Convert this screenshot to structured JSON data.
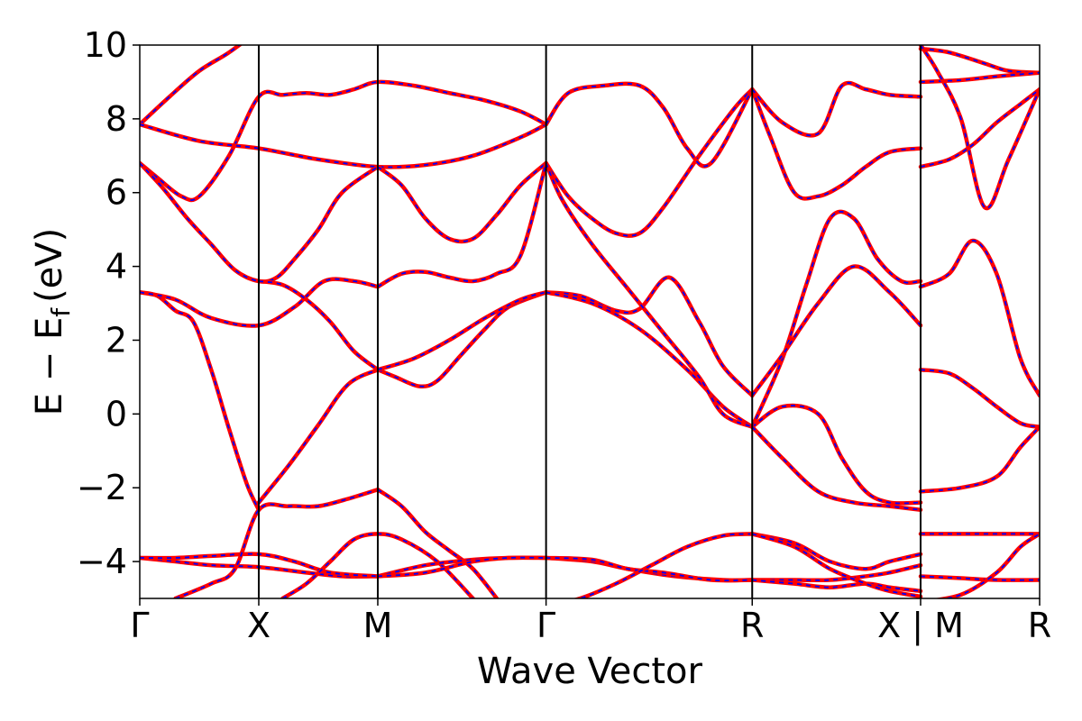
{
  "chart_data": {
    "type": "line",
    "title": "",
    "xlabel": "Wave Vector",
    "ylabel_main": "E − E",
    "ylabel_sub": "f",
    "ylabel_unit": "(eV)",
    "ylim": [
      -5,
      10
    ],
    "yticks": [
      -4,
      -2,
      0,
      2,
      4,
      6,
      8,
      10
    ],
    "ytick_labels": [
      "−4",
      "−2",
      "0",
      "2",
      "4",
      "6",
      "8",
      "10"
    ],
    "grid": false,
    "colors": {
      "band_outer": "#ff0000",
      "band_inner": "#0000ff",
      "axis": "#000000"
    },
    "path_ticks": [
      {
        "label": "Γ",
        "x": 0
      },
      {
        "label": "X",
        "x": 1
      },
      {
        "label": "M",
        "x": 2
      },
      {
        "label": "Γ",
        "x": 3.414
      },
      {
        "label": "R",
        "x": 5.146
      },
      {
        "label": "X | M",
        "x": 6.561
      },
      {
        "label": "R",
        "x": 7.561
      }
    ],
    "series": [
      {
        "x": [
          0,
          0.25,
          0.5,
          0.75,
          1.0
        ],
        "y": [
          7.85,
          8.6,
          9.3,
          9.8,
          10.4
        ]
      },
      {
        "x": [
          0,
          0.15,
          0.35,
          0.5,
          0.75,
          1.0,
          1.2,
          1.4,
          1.6,
          1.8,
          2.0,
          2.3,
          2.6,
          2.9,
          3.2,
          3.414
        ],
        "y": [
          6.8,
          6.4,
          5.9,
          5.9,
          7.0,
          8.6,
          8.65,
          8.7,
          8.65,
          8.8,
          9.0,
          8.9,
          8.7,
          8.5,
          8.2,
          7.85
        ]
      },
      {
        "x": [
          0,
          0.5,
          1.0,
          1.5,
          2.0,
          2.4,
          2.8,
          3.2,
          3.414
        ],
        "y": [
          7.85,
          7.4,
          7.2,
          6.9,
          6.7,
          6.75,
          7.0,
          7.5,
          7.85
        ]
      },
      {
        "x": [
          0,
          0.2,
          0.4,
          0.6,
          0.8,
          1.0,
          1.15,
          1.3,
          1.5,
          1.7,
          2.0
        ],
        "y": [
          6.8,
          6.1,
          5.3,
          4.6,
          3.9,
          3.6,
          3.7,
          4.2,
          5.0,
          6.0,
          6.7
        ]
      },
      {
        "x": [
          2.0,
          2.2,
          2.4,
          2.6,
          2.8,
          3.0,
          3.2,
          3.414
        ],
        "y": [
          6.7,
          6.2,
          5.3,
          4.75,
          4.75,
          5.4,
          6.2,
          6.8
        ]
      },
      {
        "x": [
          0,
          0.15,
          0.3,
          0.45,
          0.6,
          0.75,
          0.9,
          1.0
        ],
        "y": [
          3.3,
          3.2,
          2.8,
          2.5,
          1.2,
          -0.4,
          -1.9,
          -2.6
        ]
      },
      {
        "x": [
          0,
          0.3,
          0.6,
          1.0,
          1.3,
          1.55,
          1.8,
          2.0
        ],
        "y": [
          3.3,
          3.1,
          2.6,
          2.4,
          2.9,
          3.6,
          3.6,
          3.45
        ]
      },
      {
        "x": [
          1.0,
          1.2,
          1.4,
          1.6,
          1.8,
          2.0
        ],
        "y": [
          3.6,
          3.5,
          3.1,
          2.5,
          1.7,
          1.2
        ]
      },
      {
        "x": [
          2.0,
          2.2,
          2.4,
          2.6,
          2.8,
          3.0,
          3.2,
          3.414
        ],
        "y": [
          3.45,
          3.8,
          3.85,
          3.7,
          3.6,
          3.8,
          4.3,
          6.8
        ]
      },
      {
        "x": [
          1.0,
          1.25,
          1.5,
          1.75,
          2.0
        ],
        "y": [
          -2.4,
          -1.4,
          -0.3,
          0.8,
          1.2
        ]
      },
      {
        "x": [
          2.0,
          2.15,
          2.35,
          2.5,
          2.7,
          2.9,
          3.1,
          3.414
        ],
        "y": [
          1.2,
          1.0,
          0.75,
          0.9,
          1.6,
          2.3,
          2.9,
          3.3
        ]
      },
      {
        "x": [
          2.0,
          2.3,
          2.6,
          2.9,
          3.2,
          3.414
        ],
        "y": [
          1.2,
          1.5,
          2.0,
          2.6,
          3.1,
          3.3
        ]
      },
      {
        "x": [
          3.414,
          3.7,
          4.0,
          4.2,
          4.45,
          4.7,
          4.9,
          5.146
        ],
        "y": [
          3.3,
          3.2,
          2.8,
          2.85,
          3.7,
          2.5,
          1.3,
          0.5
        ]
      },
      {
        "x": [
          3.414,
          3.8,
          4.2,
          4.6,
          4.9,
          5.146
        ],
        "y": [
          3.3,
          3.0,
          2.3,
          1.2,
          0.2,
          -0.35
        ]
      },
      {
        "x": [
          3.414,
          3.6,
          3.8,
          4.0,
          4.2,
          4.4,
          4.7,
          5.0,
          5.146
        ],
        "y": [
          6.8,
          5.9,
          5.3,
          4.9,
          4.9,
          5.6,
          7.0,
          8.3,
          8.8
        ]
      },
      {
        "x": [
          3.414,
          3.55,
          3.8,
          4.1,
          4.4,
          4.7,
          4.9,
          5.146
        ],
        "y": [
          6.8,
          5.8,
          4.6,
          3.4,
          2.2,
          1.0,
          0.0,
          -0.35
        ]
      },
      {
        "x": [
          3.414,
          3.6,
          3.9,
          4.2,
          4.4,
          4.6,
          4.8,
          5.146
        ],
        "y": [
          7.85,
          8.7,
          8.9,
          8.9,
          8.3,
          7.2,
          6.8,
          8.8
        ]
      },
      {
        "x": [
          5.146,
          5.3,
          5.5,
          5.7,
          5.9,
          6.1,
          6.3,
          6.561
        ],
        "y": [
          8.8,
          7.5,
          6.0,
          5.9,
          6.2,
          6.7,
          7.1,
          7.2
        ]
      },
      {
        "x": [
          5.146,
          5.4,
          5.7,
          5.9,
          6.1,
          6.3,
          6.561
        ],
        "y": [
          8.8,
          7.9,
          7.6,
          8.9,
          8.8,
          8.65,
          8.6
        ]
      },
      {
        "x": [
          5.146,
          5.4,
          5.6,
          5.8,
          6.0,
          6.2,
          6.4,
          6.561
        ],
        "y": [
          -0.35,
          1.5,
          3.5,
          5.3,
          5.3,
          4.2,
          3.6,
          3.6
        ]
      },
      {
        "x": [
          5.146,
          5.4,
          5.7,
          6.0,
          6.3,
          6.561
        ],
        "y": [
          0.5,
          1.6,
          3.0,
          4.0,
          3.3,
          2.4
        ]
      },
      {
        "x": [
          5.146,
          5.4,
          5.7,
          5.9,
          6.1,
          6.3,
          6.561
        ],
        "y": [
          -0.35,
          0.2,
          0.0,
          -1.2,
          -2.1,
          -2.4,
          -2.4
        ]
      },
      {
        "x": [
          5.146,
          5.4,
          5.7,
          6.0,
          6.3,
          6.561
        ],
        "y": [
          -0.35,
          -1.2,
          -2.1,
          -2.4,
          -2.5,
          -2.6
        ]
      },
      {
        "x": [
          0,
          0.3,
          0.6,
          1.0,
          1.4,
          1.7,
          2.0
        ],
        "y": [
          -3.9,
          -4.0,
          -4.1,
          -4.15,
          -4.3,
          -4.4,
          -4.4
        ]
      },
      {
        "x": [
          0,
          0.3,
          0.6,
          1.0,
          1.3,
          1.6,
          2.0
        ],
        "y": [
          -3.9,
          -3.9,
          -3.85,
          -3.8,
          -4.0,
          -4.3,
          -4.4
        ]
      },
      {
        "x": [
          0.3,
          0.6,
          0.8,
          1.0,
          1.25,
          1.5,
          1.75,
          2.0
        ],
        "y": [
          -5.0,
          -4.6,
          -4.2,
          -2.6,
          -2.5,
          -2.5,
          -2.3,
          -2.05
        ]
      },
      {
        "x": [
          2.0,
          2.2,
          2.4,
          2.6,
          2.8,
          3.0
        ],
        "y": [
          -2.05,
          -2.5,
          -3.2,
          -3.7,
          -4.2,
          -5.0
        ]
      },
      {
        "x": [
          1.2,
          1.4,
          1.6,
          1.8,
          2.0,
          2.2,
          2.5,
          2.8
        ],
        "y": [
          -5.0,
          -4.6,
          -4.0,
          -3.4,
          -3.25,
          -3.4,
          -4.0,
          -5.0
        ]
      },
      {
        "x": [
          2.0,
          2.4,
          2.8,
          3.1,
          3.414
        ],
        "y": [
          -4.4,
          -4.1,
          -3.95,
          -3.9,
          -3.9
        ]
      },
      {
        "x": [
          2.0,
          2.4,
          2.8,
          3.1,
          3.414
        ],
        "y": [
          -4.4,
          -4.3,
          -4.0,
          -3.9,
          -3.9
        ]
      },
      {
        "x": [
          3.414,
          3.8,
          4.1,
          4.5,
          4.9,
          5.146
        ],
        "y": [
          -3.9,
          -4.0,
          -4.2,
          -4.4,
          -4.5,
          -4.5
        ]
      },
      {
        "x": [
          3.414,
          3.8,
          4.1,
          4.4,
          4.8,
          5.146
        ],
        "y": [
          -3.9,
          -3.95,
          -4.2,
          -4.3,
          -4.5,
          -4.5
        ]
      },
      {
        "x": [
          3.414,
          3.7,
          4.0,
          4.3,
          4.6,
          4.9,
          5.146
        ],
        "y": [
          -5.2,
          -5.0,
          -4.6,
          -4.1,
          -3.6,
          -3.3,
          -3.25
        ]
      },
      {
        "x": [
          5.146,
          5.5,
          5.8,
          6.1,
          6.3,
          6.561
        ],
        "y": [
          -3.25,
          -3.5,
          -4.0,
          -4.2,
          -4.0,
          -3.8
        ]
      },
      {
        "x": [
          5.146,
          5.5,
          5.8,
          6.1,
          6.3,
          6.561
        ],
        "y": [
          -4.5,
          -4.5,
          -4.5,
          -4.4,
          -4.3,
          -4.1
        ]
      },
      {
        "x": [
          5.146,
          5.5,
          5.8,
          6.1,
          6.3,
          6.561
        ],
        "y": [
          -4.5,
          -4.6,
          -4.7,
          -4.6,
          -4.7,
          -4.8
        ]
      },
      {
        "x": [
          5.146,
          5.5,
          5.8,
          6.1,
          6.3,
          6.561
        ],
        "y": [
          -3.25,
          -3.6,
          -4.2,
          -4.6,
          -4.8,
          -4.95
        ]
      },
      {
        "x": [
          6.561,
          6.8,
          7.1,
          7.3,
          7.561
        ],
        "y": [
          9.9,
          9.8,
          9.5,
          9.3,
          9.25
        ]
      },
      {
        "x": [
          6.561,
          6.9,
          7.2,
          7.561
        ],
        "y": [
          9.0,
          9.05,
          9.15,
          9.25
        ]
      },
      {
        "x": [
          6.561,
          6.7,
          6.9,
          7.1,
          7.3,
          7.561
        ],
        "y": [
          10.0,
          9.3,
          8.0,
          5.6,
          6.9,
          8.8
        ]
      },
      {
        "x": [
          6.561,
          6.8,
          7.0,
          7.2,
          7.4,
          7.561
        ],
        "y": [
          6.7,
          6.9,
          7.3,
          7.9,
          8.4,
          8.8
        ]
      },
      {
        "x": [
          6.561,
          6.8,
          7.0,
          7.2,
          7.4,
          7.561
        ],
        "y": [
          3.45,
          3.8,
          4.7,
          3.8,
          1.5,
          0.5
        ]
      },
      {
        "x": [
          6.561,
          6.8,
          7.0,
          7.2,
          7.4,
          7.561
        ],
        "y": [
          1.2,
          1.1,
          0.7,
          0.2,
          -0.25,
          -0.35
        ]
      },
      {
        "x": [
          6.561,
          6.9,
          7.2,
          7.4,
          7.561
        ],
        "y": [
          -2.1,
          -2.0,
          -1.7,
          -0.9,
          -0.35
        ]
      },
      {
        "x": [
          6.561,
          7.0,
          7.561
        ],
        "y": [
          -3.25,
          -3.25,
          -3.25
        ]
      },
      {
        "x": [
          6.561,
          6.9,
          7.2,
          7.561
        ],
        "y": [
          -4.4,
          -4.45,
          -4.5,
          -4.5
        ]
      },
      {
        "x": [
          6.561,
          6.9,
          7.2,
          7.4,
          7.561
        ],
        "y": [
          -5.1,
          -4.9,
          -4.3,
          -3.6,
          -3.25
        ]
      }
    ]
  }
}
